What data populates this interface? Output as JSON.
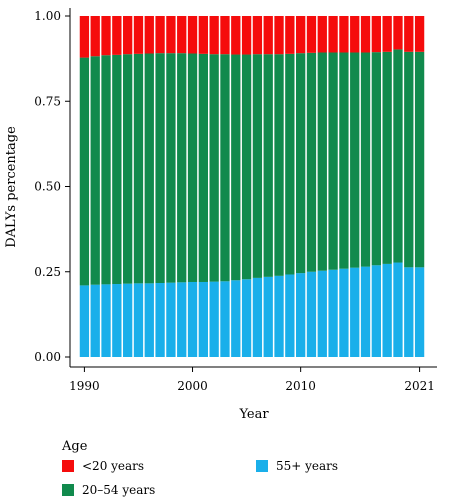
{
  "chart_data": {
    "type": "bar",
    "stacked": true,
    "ylabel": "DALYs percentage",
    "xlabel": "Year",
    "ylim": [
      0,
      1
    ],
    "yticks": [
      "0.00",
      "0.25",
      "0.50",
      "0.75",
      "1.00"
    ],
    "xticks": [
      "1990",
      "2000",
      "2010",
      "2021"
    ],
    "grid": false,
    "categories": [
      1990,
      1991,
      1992,
      1993,
      1994,
      1995,
      1996,
      1997,
      1998,
      1999,
      2000,
      2001,
      2002,
      2003,
      2004,
      2005,
      2006,
      2007,
      2008,
      2009,
      2010,
      2011,
      2012,
      2013,
      2014,
      2015,
      2016,
      2017,
      2018,
      2019,
      2020,
      2021
    ],
    "series": [
      {
        "name": "55+ years",
        "color": "#1aafea",
        "values": [
          0.21,
          0.212,
          0.213,
          0.214,
          0.215,
          0.216,
          0.216,
          0.217,
          0.218,
          0.219,
          0.22,
          0.22,
          0.221,
          0.222,
          0.225,
          0.228,
          0.232,
          0.235,
          0.238,
          0.242,
          0.246,
          0.25,
          0.253,
          0.256,
          0.259,
          0.262,
          0.265,
          0.269,
          0.273,
          0.277,
          0.263,
          0.263
        ]
      },
      {
        "name": "20–54 years",
        "color": "#118a4d",
        "values": [
          0.668,
          0.67,
          0.672,
          0.672,
          0.673,
          0.673,
          0.674,
          0.674,
          0.673,
          0.672,
          0.67,
          0.669,
          0.667,
          0.666,
          0.662,
          0.659,
          0.656,
          0.653,
          0.65,
          0.647,
          0.645,
          0.642,
          0.64,
          0.637,
          0.634,
          0.631,
          0.628,
          0.625,
          0.622,
          0.625,
          0.632,
          0.632
        ]
      },
      {
        "name": "<20 years",
        "color": "#f50c0c",
        "values": [
          0.122,
          0.118,
          0.115,
          0.114,
          0.112,
          0.111,
          0.11,
          0.109,
          0.109,
          0.109,
          0.11,
          0.111,
          0.112,
          0.112,
          0.113,
          0.113,
          0.112,
          0.112,
          0.112,
          0.111,
          0.109,
          0.108,
          0.107,
          0.107,
          0.107,
          0.107,
          0.107,
          0.106,
          0.105,
          0.098,
          0.105,
          0.105
        ]
      }
    ],
    "legend": {
      "title": "Age",
      "placement": "bottom",
      "entries": [
        {
          "label": "<20 years",
          "color": "#f50c0c"
        },
        {
          "label": "20–54 years",
          "color": "#118a4d"
        },
        {
          "label": "55+ years",
          "color": "#1aafea"
        }
      ]
    }
  }
}
